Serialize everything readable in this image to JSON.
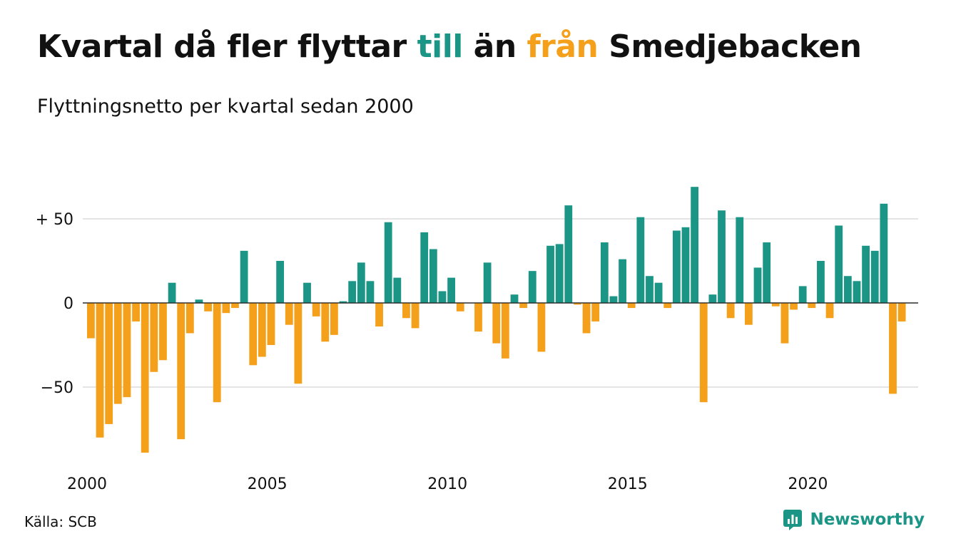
{
  "title": {
    "part1": "Kvartal då fler flyttar ",
    "till": "till",
    "part2": " än ",
    "fran": "från",
    "part3": " Smedjebacken"
  },
  "subtitle": "Flyttningsnetto per kvartal sedan 2000",
  "source": "Källa: SCB",
  "brand": {
    "name": "Newsworthy",
    "icon": "newsworthy-logo-icon"
  },
  "colors": {
    "positive": "#1b9585",
    "negative": "#f5a01a",
    "grid": "#dcdcdc",
    "text": "#111111"
  },
  "chart_data": {
    "type": "bar",
    "title": "Kvartal då fler flyttar till än från Smedjebacken",
    "subtitle": "Flyttningsnetto per kvartal sedan 2000",
    "xlabel": "",
    "ylabel": "",
    "start_quarter": "2000K1",
    "x_ticks": [
      "2000",
      "2005",
      "2010",
      "2015",
      "2020"
    ],
    "y_ticks": [
      50,
      0,
      -50
    ],
    "y_tick_labels": [
      "+ 50",
      "0",
      "−50"
    ],
    "ylim": [
      -95,
      75
    ],
    "grid": true,
    "values": [
      -21,
      -80,
      -72,
      -60,
      -56,
      -11,
      -89,
      -41,
      -34,
      12,
      -81,
      -18,
      2,
      -5,
      -59,
      -6,
      -3,
      31,
      -37,
      -32,
      -25,
      25,
      -13,
      -48,
      12,
      -8,
      -23,
      -19,
      1,
      13,
      24,
      13,
      -14,
      48,
      15,
      -9,
      -15,
      42,
      32,
      7,
      15,
      -5,
      0,
      -17,
      24,
      -24,
      -33,
      5,
      -3,
      19,
      -29,
      34,
      35,
      58,
      -1,
      -18,
      -11,
      36,
      4,
      26,
      -3,
      51,
      16,
      12,
      -3,
      43,
      45,
      69,
      -59,
      5,
      55,
      -9,
      51,
      -13,
      21,
      36,
      -2,
      -24,
      -4,
      10,
      -3,
      25,
      -9,
      46,
      16,
      13,
      34,
      31,
      59,
      -54,
      -11
    ]
  }
}
